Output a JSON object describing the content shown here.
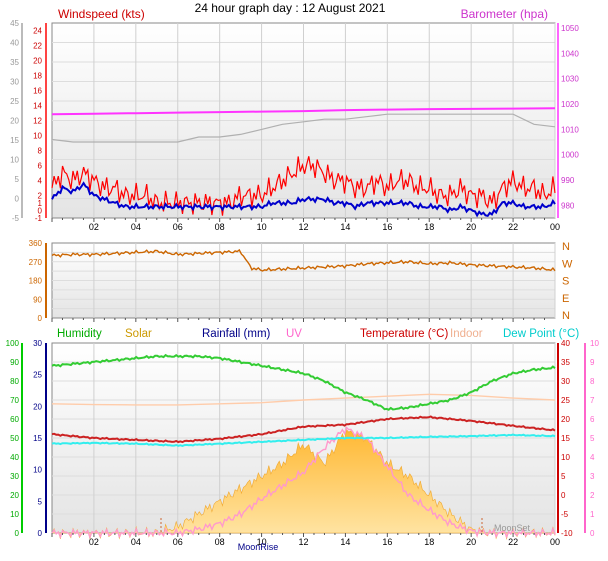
{
  "title": "24 hour graph day : 12 August 2021",
  "x_ticks": [
    "02",
    "04",
    "06",
    "08",
    "10",
    "12",
    "14",
    "16",
    "18",
    "20",
    "22",
    "00"
  ],
  "colors": {
    "wind": "#ff0000",
    "gust": "#0000cc",
    "baro": "#ff33ff",
    "baro_alt": "#b0b0b0",
    "dir": "#cc6600",
    "humidity": "#33cc33",
    "solar": "#ffc44d",
    "rainfall": "#000088",
    "uv": "#ff99cc",
    "temperature": "#cc2222",
    "indoor": "#ffccaa",
    "dewpoint": "#33eeee",
    "left_axis_green": "#00cc00",
    "right_axis_pink": "#ff66cc"
  },
  "chart_data": [
    {
      "type": "line",
      "left_label": "Windspeed (kts)",
      "right_label": "Barometer (hpa)",
      "y_left_outer": {
        "ticks": [
          -5,
          0,
          5,
          10,
          15,
          20,
          25,
          30,
          35,
          40,
          45
        ],
        "ylim": [
          -5,
          45
        ]
      },
      "y_left_inner": {
        "ticks": [
          -1,
          0,
          1,
          2,
          4,
          6,
          8,
          10,
          12,
          14,
          16,
          18,
          20,
          22,
          24
        ],
        "ylim": [
          -1,
          25
        ]
      },
      "y_right": {
        "ticks": [
          980,
          990,
          1000,
          1010,
          1020,
          1030,
          1040,
          1050
        ],
        "ylim": [
          975,
          1052
        ]
      },
      "series": [
        {
          "key": "wind",
          "x": [
            0.0,
            0.5,
            1.0,
            1.5,
            2.0,
            2.5,
            3.0,
            3.5,
            4.0,
            4.5,
            5.0,
            5.5,
            6.0,
            6.5,
            7.0,
            7.5,
            8.0,
            8.5,
            9.0,
            9.5,
            10.0,
            10.5,
            11.0,
            11.5,
            12.0,
            12.5,
            13.0,
            13.5,
            14.0,
            14.5,
            15.0,
            15.5,
            16.0,
            16.5,
            17.0,
            17.5,
            18.0,
            18.5,
            19.0,
            19.5,
            20.0,
            20.5,
            21.0,
            21.5,
            22.0,
            22.5,
            23.0,
            23.5,
            24.0
          ],
          "values": [
            3,
            5,
            4,
            5,
            4,
            3,
            3,
            2,
            2,
            2,
            1,
            1,
            1,
            1,
            1,
            1,
            1,
            1,
            2,
            2,
            2,
            3,
            4,
            5,
            6,
            6,
            5,
            4,
            4,
            3,
            3,
            4,
            3,
            4,
            4,
            3,
            3,
            2,
            2,
            3,
            2,
            2,
            1,
            3,
            4,
            3,
            3,
            2,
            3
          ]
        },
        {
          "key": "gust",
          "x": [
            0.0,
            0.5,
            1.0,
            1.5,
            2.0,
            2.5,
            3.0,
            3.5,
            4.0,
            4.5,
            5.0,
            5.5,
            6.0,
            6.5,
            7.0,
            7.5,
            8.0,
            8.5,
            9.0,
            9.5,
            10.0,
            10.5,
            11.0,
            11.5,
            12.0,
            12.5,
            13.0,
            13.5,
            14.0,
            14.5,
            15.0,
            15.5,
            16.0,
            16.5,
            17.0,
            17.5,
            18.0,
            18.5,
            19.0,
            19.5,
            20.0,
            20.5,
            21.0,
            21.5,
            22.0,
            22.5,
            23.0,
            23.5,
            24.0
          ],
          "values": [
            1.5,
            3,
            2.5,
            3.5,
            2,
            1.5,
            1,
            0.5,
            0.5,
            0.5,
            0.5,
            0.5,
            0.5,
            0.5,
            0.5,
            0.5,
            0.5,
            0.5,
            0.5,
            0.5,
            0.5,
            1,
            1,
            1,
            1.5,
            1.5,
            1.5,
            1,
            1,
            0.5,
            1,
            1,
            1,
            1,
            1,
            0.5,
            0.5,
            0.5,
            0,
            0.5,
            0,
            -0.5,
            -0.5,
            1,
            1,
            0.5,
            0.5,
            0.5,
            1
          ]
        },
        {
          "key": "baro",
          "axis": "right",
          "x": [
            0,
            2,
            4,
            6,
            8,
            10,
            12,
            14,
            16,
            18,
            20,
            22,
            24
          ],
          "values": [
            1016,
            1016.2,
            1016.4,
            1016.6,
            1016.8,
            1017,
            1017.2,
            1017.6,
            1017.8,
            1018,
            1018.1,
            1018.2,
            1018.3
          ]
        },
        {
          "key": "baro_alt",
          "axis": "right",
          "x": [
            0,
            1,
            2,
            3,
            4,
            5,
            6,
            6.5,
            7,
            8,
            9,
            10,
            11,
            12,
            13,
            14,
            15,
            16,
            17,
            18,
            19,
            20,
            21,
            22,
            23,
            24
          ],
          "values": [
            1006,
            1005,
            1005,
            1005,
            1005,
            1005,
            1005,
            1006,
            1007,
            1007,
            1008,
            1010,
            1012,
            1013,
            1014,
            1014,
            1015,
            1016,
            1016,
            1016,
            1016,
            1016,
            1016,
            1016,
            1012,
            1011
          ]
        }
      ]
    },
    {
      "type": "scatter",
      "y_left": {
        "ticks": [
          0,
          90,
          180,
          270,
          360
        ],
        "ylim": [
          0,
          360
        ]
      },
      "y_right": {
        "ticks": [
          "N",
          "W",
          "S",
          "E",
          "N"
        ]
      },
      "series": [
        {
          "key": "dir",
          "x": [
            0,
            1,
            2,
            3,
            4,
            5,
            6,
            7,
            8,
            9,
            9.5,
            10,
            11,
            12,
            13,
            14,
            15,
            16,
            17,
            18,
            19,
            20,
            21,
            22,
            23,
            24
          ],
          "values": [
            300,
            305,
            305,
            310,
            315,
            320,
            305,
            310,
            315,
            320,
            240,
            230,
            235,
            240,
            245,
            250,
            260,
            265,
            270,
            260,
            265,
            255,
            250,
            245,
            240,
            230
          ]
        }
      ]
    },
    {
      "type": "area",
      "series_names": [
        "Humidity",
        "Solar",
        "Rainfall (mm)",
        "UV",
        "Temperature (°C)",
        "Indoor",
        "Dew Point (°C)"
      ],
      "y_outer_left": {
        "ticks": [
          0,
          10,
          20,
          30,
          40,
          50,
          60,
          70,
          80,
          90,
          100
        ],
        "ylim": [
          0,
          100
        ]
      },
      "y_inner_left": {
        "ticks": [
          0,
          5,
          10,
          15,
          20,
          25,
          30
        ],
        "ylim": [
          0,
          30
        ]
      },
      "y_inner_right": {
        "ticks": [
          -10,
          -5,
          0,
          5,
          10,
          15,
          20,
          25,
          30,
          35,
          40
        ],
        "ylim": [
          -10,
          40
        ]
      },
      "y_outer_right": {
        "ticks": [
          0,
          1,
          2,
          3,
          4,
          5,
          6,
          7,
          8,
          9,
          10
        ],
        "ylim": [
          0,
          10
        ]
      },
      "annotations": {
        "moonrise": "MoonRise",
        "moonset": "MoonSet"
      },
      "series": [
        {
          "key": "humidity",
          "axis": "outer_left",
          "x": [
            0,
            1,
            2,
            3,
            4,
            5,
            6,
            7,
            8,
            9,
            10,
            11,
            12,
            13,
            14,
            15,
            16,
            17,
            18,
            19,
            20,
            21,
            22,
            23,
            24
          ],
          "values": [
            88,
            89,
            90,
            91,
            92,
            93,
            93,
            93,
            92,
            90,
            88,
            86,
            84,
            80,
            74,
            70,
            65,
            66,
            68,
            70,
            74,
            80,
            84,
            86,
            87
          ]
        },
        {
          "key": "solar",
          "axis": "inner_left",
          "x": [
            0,
            5,
            6,
            7,
            8,
            9,
            10,
            11,
            12,
            13,
            14,
            15,
            16,
            17,
            18,
            19,
            20,
            21,
            24
          ],
          "values": [
            0,
            0,
            1,
            3,
            5,
            7,
            9,
            11,
            14,
            11,
            16,
            15,
            11,
            9,
            6,
            3,
            0.5,
            0,
            0
          ]
        },
        {
          "key": "uv",
          "axis": "outer_right",
          "x": [
            0,
            6,
            7,
            8,
            9,
            10,
            11,
            12,
            13,
            14,
            15,
            16,
            17,
            18,
            19,
            20,
            21,
            24
          ],
          "values": [
            0,
            0,
            0.2,
            0.5,
            1,
            1.8,
            2.5,
            3.2,
            4.5,
            5.5,
            5,
            3.5,
            2,
            1.2,
            0.5,
            0.1,
            0,
            0
          ]
        },
        {
          "key": "temperature",
          "axis": "inner_right",
          "x": [
            0,
            2,
            4,
            6,
            8,
            10,
            12,
            14,
            16,
            18,
            20,
            22,
            24
          ],
          "values": [
            16,
            15,
            14.5,
            14,
            14.8,
            16,
            18,
            18.5,
            20,
            20.5,
            19.5,
            18.2,
            17
          ]
        },
        {
          "key": "indoor",
          "axis": "inner_right",
          "x": [
            0,
            2,
            4,
            6,
            8,
            10,
            12,
            14,
            16,
            18,
            20,
            22,
            24
          ],
          "values": [
            24,
            23.8,
            23.7,
            23.7,
            24,
            24.3,
            25,
            25.5,
            26,
            26.5,
            26.2,
            25.5,
            25
          ]
        },
        {
          "key": "dewpoint",
          "axis": "inner_right",
          "x": [
            0,
            2,
            4,
            6,
            8,
            10,
            12,
            14,
            16,
            18,
            20,
            22,
            24
          ],
          "values": [
            13.5,
            13.7,
            13.5,
            13,
            13.5,
            14,
            14.5,
            15,
            15,
            15.3,
            15.5,
            15.8,
            15.5
          ]
        }
      ]
    }
  ]
}
